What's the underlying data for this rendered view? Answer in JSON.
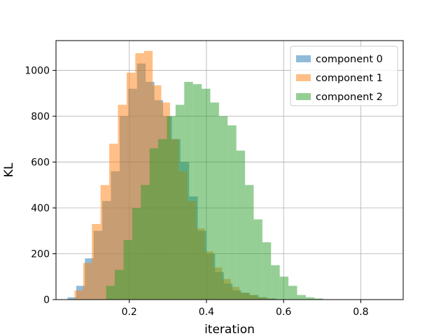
{
  "chart_data": {
    "type": "histogram",
    "title": "",
    "xlabel": "iteration",
    "ylabel": "KL",
    "xlim": [
      0.01,
      0.91
    ],
    "ylim": [
      0,
      1130
    ],
    "xticks": [
      0.2,
      0.4,
      0.6,
      0.8
    ],
    "xtick_labels": [
      "0.2",
      "0.4",
      "0.6",
      "0.8"
    ],
    "yticks": [
      0,
      200,
      400,
      600,
      800,
      1000
    ],
    "ytick_labels": [
      "0",
      "200",
      "400",
      "600",
      "800",
      "1000"
    ],
    "grid": true,
    "legend_position": "top-right",
    "bar_alpha": 0.5,
    "series": [
      {
        "name": "component 0",
        "color": "#1f77b4",
        "bin_start": 0.04,
        "bin_width": 0.0225,
        "counts": [
          10,
          60,
          180,
          300,
          430,
          560,
          800,
          920,
          1030,
          950,
          870,
          800,
          700,
          600,
          450,
          300,
          200,
          120,
          70,
          40,
          30,
          20,
          10,
          5,
          2
        ]
      },
      {
        "name": "component 1",
        "color": "#ff7f0e",
        "bin_start": 0.058,
        "bin_width": 0.0225,
        "counts": [
          40,
          160,
          330,
          500,
          680,
          850,
          990,
          1075,
          1085,
          935,
          860,
          700,
          560,
          430,
          310,
          210,
          140,
          90,
          55,
          30,
          20,
          10,
          5
        ]
      },
      {
        "name": "component 2",
        "color": "#2ca02c",
        "bin_start": 0.14,
        "bin_width": 0.0225,
        "counts": [
          60,
          130,
          260,
          400,
          500,
          660,
          700,
          800,
          850,
          950,
          940,
          920,
          860,
          800,
          760,
          650,
          500,
          350,
          250,
          150,
          100,
          60,
          20,
          10,
          5
        ]
      }
    ]
  }
}
